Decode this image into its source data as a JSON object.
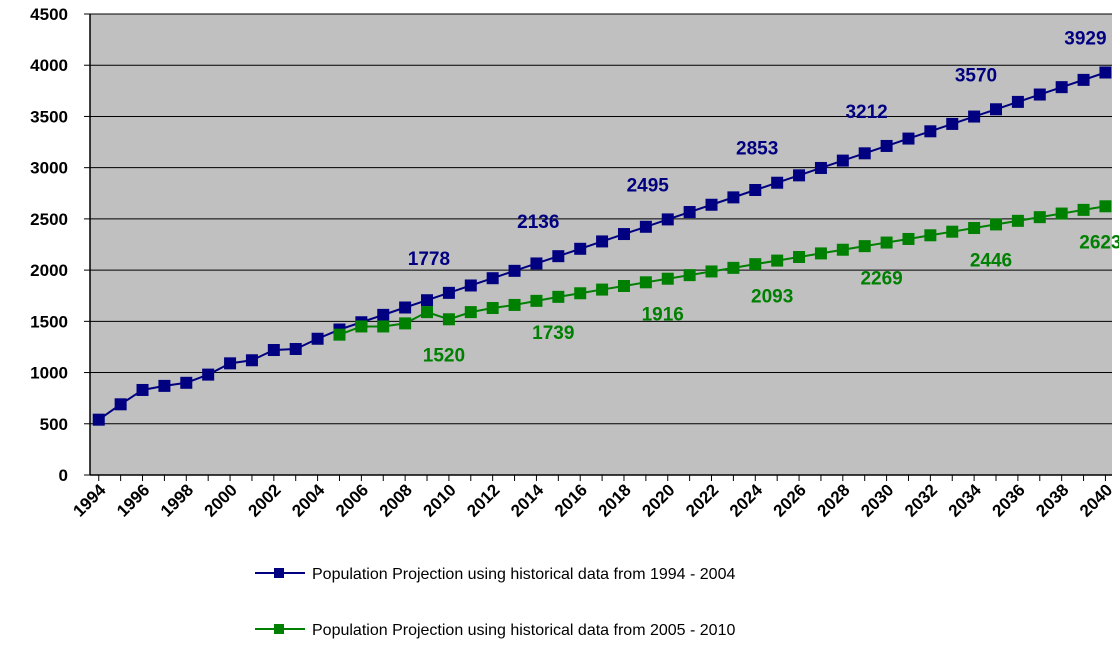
{
  "chart_data": {
    "type": "line",
    "x": [
      1994,
      1995,
      1996,
      1997,
      1998,
      1999,
      2000,
      2001,
      2002,
      2003,
      2004,
      2005,
      2006,
      2007,
      2008,
      2009,
      2010,
      2011,
      2012,
      2013,
      2014,
      2015,
      2016,
      2017,
      2018,
      2019,
      2020,
      2021,
      2022,
      2023,
      2024,
      2025,
      2026,
      2027,
      2028,
      2029,
      2030,
      2031,
      2032,
      2033,
      2034,
      2035,
      2036,
      2037,
      2038,
      2039,
      2040
    ],
    "xlim": [
      1993.6,
      2040.3
    ],
    "xticks": [
      1994,
      1996,
      1998,
      2000,
      2002,
      2004,
      2006,
      2008,
      2010,
      2012,
      2014,
      2016,
      2018,
      2020,
      2022,
      2024,
      2026,
      2028,
      2030,
      2032,
      2034,
      2036,
      2038,
      2040
    ],
    "ylim": [
      0,
      4500
    ],
    "yticks": [
      0,
      500,
      1000,
      1500,
      2000,
      2500,
      3000,
      3500,
      4000,
      4500
    ],
    "grid": true,
    "legend": "bottom",
    "series": [
      {
        "name": "Population Projection using historical data from 1994 - 2004",
        "color": "#000080",
        "values": [
          540,
          690,
          830,
          870,
          900,
          980,
          1090,
          1120,
          1220,
          1230,
          1330,
          1420,
          1491,
          1563,
          1635,
          1706,
          1778,
          1850,
          1921,
          1993,
          2065,
          2136,
          2208,
          2280,
          2352,
          2423,
          2495,
          2567,
          2638,
          2710,
          2782,
          2853,
          2925,
          2997,
          3069,
          3140,
          3212,
          3284,
          3355,
          3427,
          3499,
          3570,
          3642,
          3714,
          3786,
          3857,
          3929
        ],
        "value_labels": [
          null,
          null,
          null,
          null,
          null,
          null,
          null,
          null,
          null,
          null,
          null,
          null,
          null,
          null,
          null,
          null,
          "1778",
          null,
          null,
          null,
          null,
          "2136",
          null,
          null,
          null,
          null,
          "2495",
          null,
          null,
          null,
          null,
          "2853",
          null,
          null,
          null,
          null,
          "3212",
          null,
          null,
          null,
          null,
          "3570",
          null,
          null,
          null,
          null,
          "3929"
        ]
      },
      {
        "name": "Population Projection using historical data from 2005 - 2010",
        "color": "#008000",
        "values": [
          null,
          null,
          null,
          null,
          null,
          null,
          null,
          null,
          null,
          null,
          null,
          1370,
          1450,
          1450,
          1480,
          1590,
          1520,
          1590,
          1630,
          1660,
          1700,
          1739,
          1774,
          1810,
          1845,
          1881,
          1916,
          1951,
          1987,
          2022,
          2058,
          2093,
          2128,
          2163,
          2199,
          2234,
          2269,
          2304,
          2340,
          2375,
          2411,
          2446,
          2481,
          2517,
          2552,
          2588,
          2623
        ],
        "value_labels": [
          null,
          null,
          null,
          null,
          null,
          null,
          null,
          null,
          null,
          null,
          null,
          null,
          null,
          null,
          null,
          null,
          "1520",
          null,
          null,
          null,
          null,
          "1739",
          null,
          null,
          null,
          null,
          "1916",
          null,
          null,
          null,
          null,
          "2093",
          null,
          null,
          null,
          null,
          "2269",
          null,
          null,
          null,
          null,
          "2446",
          null,
          null,
          null,
          null,
          "2623"
        ]
      }
    ]
  }
}
